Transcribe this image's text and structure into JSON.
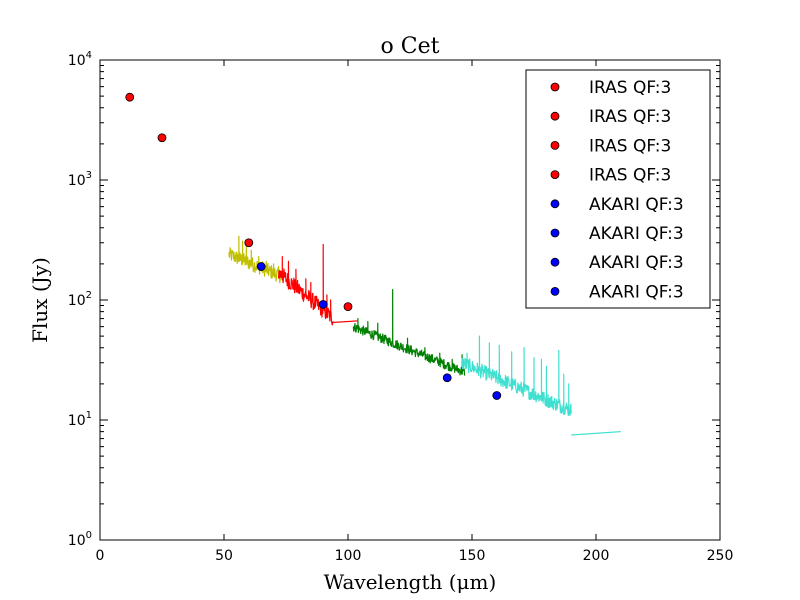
{
  "chart_data": {
    "type": "scatter",
    "title": "o Cet",
    "xlabel": "Wavelength (μm)",
    "ylabel": "Flux (Jy)",
    "xlim": [
      0,
      250
    ],
    "ylim": [
      1,
      10000
    ],
    "yscale": "log",
    "xticks": [
      {
        "value": 0,
        "label": "0"
      },
      {
        "value": 50,
        "label": "50"
      },
      {
        "value": 100,
        "label": "100"
      },
      {
        "value": 150,
        "label": "150"
      },
      {
        "value": 200,
        "label": "200"
      },
      {
        "value": 250,
        "label": "250"
      }
    ],
    "yticks": [
      {
        "value": 1,
        "base": "10",
        "exp": "0"
      },
      {
        "value": 10,
        "base": "10",
        "exp": "1"
      },
      {
        "value": 100,
        "base": "10",
        "exp": "2"
      },
      {
        "value": 1000,
        "base": "10",
        "exp": "3"
      },
      {
        "value": 10000,
        "base": "10",
        "exp": "4"
      }
    ],
    "legend_position": "top-right",
    "legend": [
      {
        "label": "IRAS QF:3",
        "color": "#ff0000"
      },
      {
        "label": "IRAS QF:3",
        "color": "#ff0000"
      },
      {
        "label": "IRAS QF:3",
        "color": "#ff0000"
      },
      {
        "label": "IRAS QF:3",
        "color": "#ff0000"
      },
      {
        "label": "AKARI QF:3",
        "color": "#0000ff"
      },
      {
        "label": "AKARI QF:3",
        "color": "#0000ff"
      },
      {
        "label": "AKARI QF:3",
        "color": "#0000ff"
      },
      {
        "label": "AKARI QF:3",
        "color": "#0000ff"
      }
    ],
    "points": [
      {
        "series": "IRAS QF:3",
        "x": 12,
        "y": 4900,
        "color": "#ff0000"
      },
      {
        "series": "IRAS QF:3",
        "x": 25,
        "y": 2250,
        "color": "#ff0000"
      },
      {
        "series": "IRAS QF:3",
        "x": 60,
        "y": 300,
        "color": "#ff0000"
      },
      {
        "series": "IRAS QF:3",
        "x": 100,
        "y": 88,
        "color": "#ff0000"
      },
      {
        "series": "AKARI QF:3",
        "x": 65,
        "y": 190,
        "color": "#0000ff"
      },
      {
        "series": "AKARI QF:3",
        "x": 90,
        "y": 92,
        "color": "#0000ff"
      },
      {
        "series": "AKARI QF:3",
        "x": 140,
        "y": 22.5,
        "color": "#0000ff"
      },
      {
        "series": "AKARI QF:3",
        "x": 160,
        "y": 16,
        "color": "#0000ff"
      }
    ],
    "spectra": [
      {
        "name": "spectrum-yellow",
        "color": "#bfbf00",
        "x_start": 52,
        "x_end": 74,
        "y_start": 240,
        "y_end": 155,
        "jitter": 0.06,
        "spikes": [
          {
            "x": 56,
            "y": 340
          },
          {
            "x": 57.5,
            "y": 310
          },
          {
            "x": 59,
            "y": 280
          },
          {
            "x": 61,
            "y": 260
          },
          {
            "x": 64,
            "y": 230
          },
          {
            "x": 67,
            "y": 210
          },
          {
            "x": 70,
            "y": 200
          },
          {
            "x": 72,
            "y": 190
          }
        ]
      },
      {
        "name": "spectrum-red",
        "color": "#ff0000",
        "x_start": 72,
        "x_end": 94,
        "y_start": 170,
        "y_end": 70,
        "jitter": 0.07,
        "spikes": [
          {
            "x": 73.5,
            "y": 230
          },
          {
            "x": 76,
            "y": 210
          },
          {
            "x": 79,
            "y": 180
          },
          {
            "x": 83,
            "y": 150
          },
          {
            "x": 85,
            "y": 140
          },
          {
            "x": 90,
            "y": 290
          },
          {
            "x": 91.5,
            "y": 110
          },
          {
            "x": 93,
            "y": 100
          }
        ]
      },
      {
        "name": "spectrum-red-tail",
        "color": "#ff0000",
        "x_start": 94,
        "x_end": 104,
        "y_start": 65,
        "y_end": 67,
        "jitter": 0.0,
        "spikes": []
      },
      {
        "name": "spectrum-green",
        "color": "#008000",
        "x_start": 102,
        "x_end": 147,
        "y_start": 60,
        "y_end": 25,
        "jitter": 0.04,
        "spikes": [
          {
            "x": 104,
            "y": 70
          },
          {
            "x": 108,
            "y": 66
          },
          {
            "x": 112,
            "y": 64
          },
          {
            "x": 118,
            "y": 122
          },
          {
            "x": 124,
            "y": 48
          },
          {
            "x": 131,
            "y": 40
          },
          {
            "x": 137,
            "y": 36
          },
          {
            "x": 142,
            "y": 32
          },
          {
            "x": 146,
            "y": 35
          }
        ]
      },
      {
        "name": "spectrum-cyan",
        "color": "#40e0d0",
        "x_start": 146,
        "x_end": 190,
        "y_start": 30,
        "y_end": 12,
        "jitter": 0.06,
        "spikes": [
          {
            "x": 148,
            "y": 36
          },
          {
            "x": 153,
            "y": 50
          },
          {
            "x": 157,
            "y": 44
          },
          {
            "x": 161,
            "y": 42
          },
          {
            "x": 166,
            "y": 37
          },
          {
            "x": 171,
            "y": 40
          },
          {
            "x": 175,
            "y": 33
          },
          {
            "x": 178,
            "y": 32
          },
          {
            "x": 180,
            "y": 28
          },
          {
            "x": 185,
            "y": 38
          },
          {
            "x": 187,
            "y": 24
          },
          {
            "x": 189,
            "y": 20
          }
        ]
      },
      {
        "name": "spectrum-cyan-tail",
        "color": "#40e0d0",
        "x_start": 190,
        "x_end": 210,
        "y_start": 7.5,
        "y_end": 8,
        "jitter": 0.0,
        "spikes": []
      }
    ]
  }
}
